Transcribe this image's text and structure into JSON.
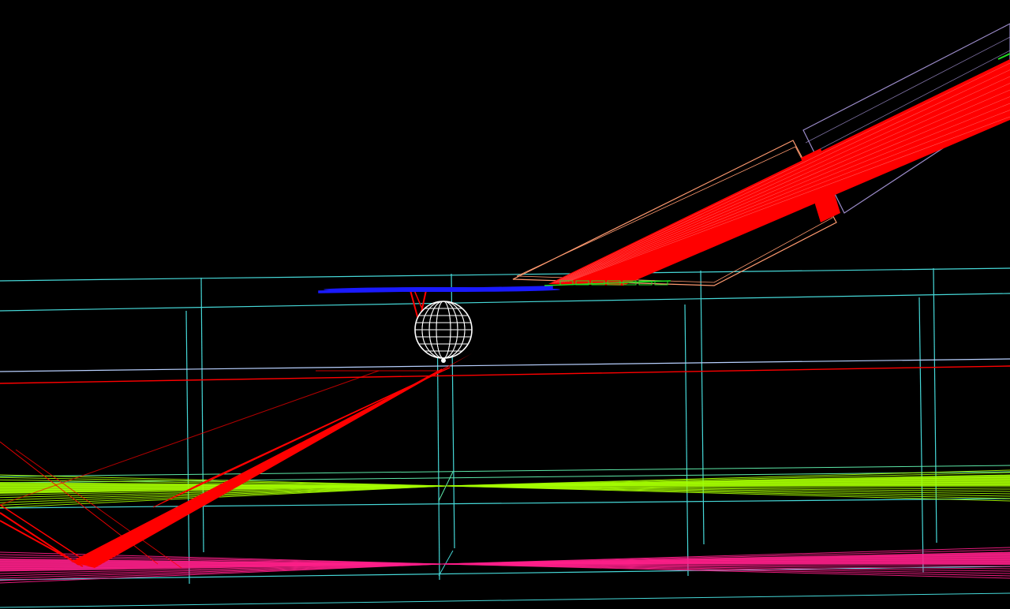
{
  "scene": {
    "background": "#000000",
    "colors": {
      "frame": "#46d8d8",
      "horizon": "#b8d0ff",
      "beam": "#ff0000",
      "beam_hatch": "#ff8a8a",
      "detector_tube": "#ff9a70",
      "detector_tube_far": "#9a8ac8",
      "plate": "#1a1aff",
      "plate_accent": "#22dd22",
      "sphere": "#ffffff",
      "green_sheet": "#a6ff00",
      "magenta_sheet": "#ff1f8a",
      "floor_line": "#5de8a8"
    },
    "objects": [
      {
        "name": "wireframe-sphere"
      },
      {
        "name": "target-plate"
      },
      {
        "name": "beam-tube"
      },
      {
        "name": "outer-tube"
      },
      {
        "name": "green-ray-fan"
      },
      {
        "name": "magenta-ray-fan"
      },
      {
        "name": "reflected-rays"
      }
    ]
  }
}
